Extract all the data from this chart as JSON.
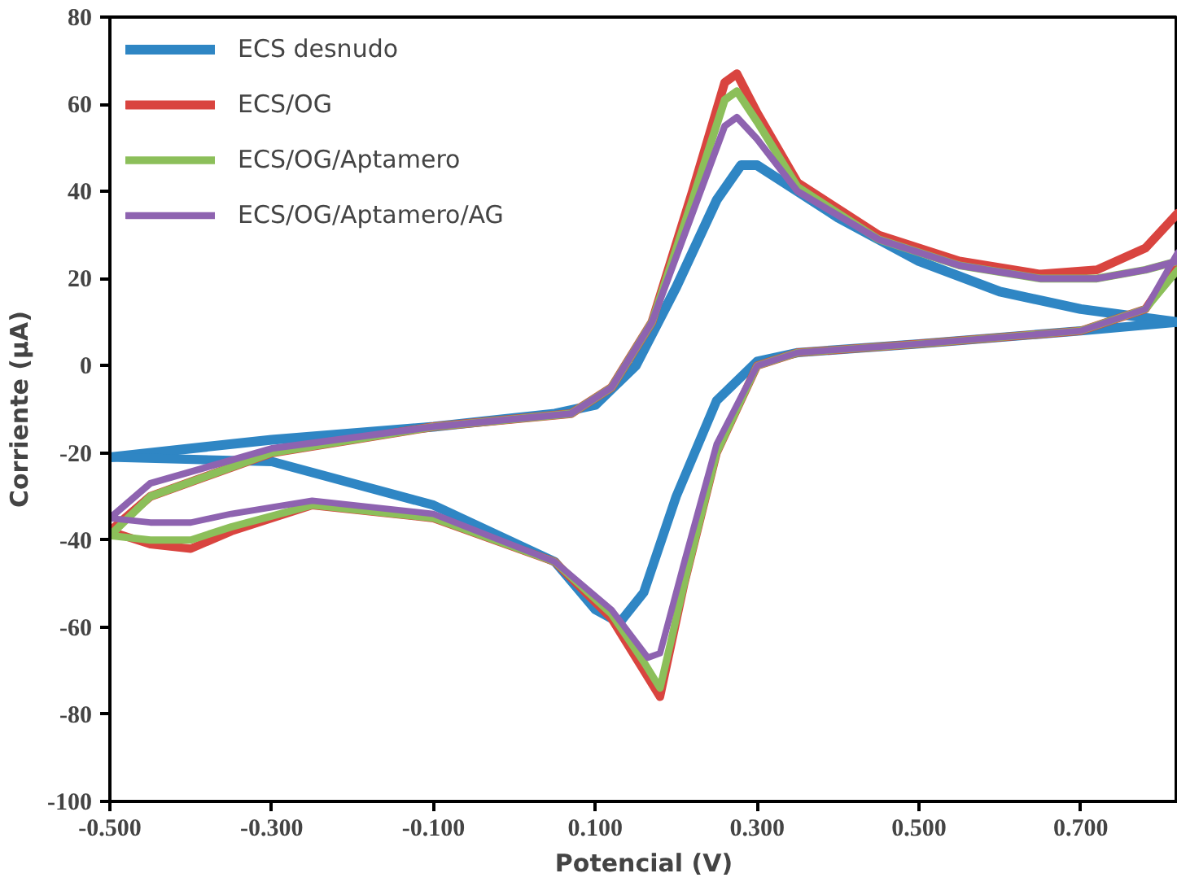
{
  "chart_data": {
    "type": "line",
    "xlabel": "Potencial (V)",
    "ylabel": "Corriente (µA)",
    "xlim": [
      -0.5,
      0.82
    ],
    "ylim": [
      -100,
      80
    ],
    "xticks": [
      {
        "value": -0.5,
        "label": "-0.500"
      },
      {
        "value": -0.3,
        "label": "-0.300"
      },
      {
        "value": -0.1,
        "label": "-0.100"
      },
      {
        "value": 0.1,
        "label": "0.100"
      },
      {
        "value": 0.3,
        "label": "0.300"
      },
      {
        "value": 0.5,
        "label": "0.500"
      },
      {
        "value": 0.7,
        "label": "0.700"
      }
    ],
    "yticks": [
      -100,
      -80,
      -60,
      -40,
      -20,
      0,
      20,
      40,
      60,
      80
    ],
    "grid": false,
    "legend": "top left",
    "marker": "none",
    "line_style": "solid",
    "series": [
      {
        "name": "ECS desnudo",
        "color": "#2f86c4",
        "x": [
          -0.5,
          -0.3,
          -0.1,
          0.05,
          0.1,
          0.15,
          0.2,
          0.25,
          0.28,
          0.3,
          0.35,
          0.4,
          0.5,
          0.6,
          0.7,
          0.82
        ],
        "values": [
          -21,
          -17,
          -14,
          -11,
          -9,
          0,
          18,
          38,
          46,
          46,
          40,
          34,
          24,
          17,
          13,
          10
        ]
      },
      {
        "color": "#2f86c4",
        "x": [
          -0.5,
          -0.3,
          -0.1,
          0.05,
          0.1,
          0.13,
          0.16,
          0.2,
          0.25,
          0.3,
          0.35,
          0.5,
          0.7,
          0.82
        ],
        "values": [
          -21,
          -22,
          -32,
          -45,
          -56,
          -59,
          -52,
          -30,
          -8,
          1,
          3,
          5,
          8,
          10
        ]
      },
      {
        "name": "ECS/OG",
        "color": "#d9443f",
        "x": [
          -0.5,
          -0.45,
          -0.3,
          -0.1,
          0.07,
          0.12,
          0.17,
          0.22,
          0.26,
          0.275,
          0.3,
          0.35,
          0.45,
          0.55,
          0.65,
          0.72,
          0.78,
          0.82
        ],
        "values": [
          -38,
          -30,
          -20,
          -14,
          -11,
          -5,
          10,
          40,
          65,
          67,
          58,
          42,
          30,
          24,
          21,
          22,
          27,
          35
        ]
      },
      {
        "color": "#d9443f",
        "x": [
          -0.5,
          -0.45,
          -0.4,
          -0.35,
          -0.25,
          -0.1,
          0.05,
          0.12,
          0.16,
          0.18,
          0.21,
          0.25,
          0.3,
          0.35,
          0.5,
          0.7,
          0.78,
          0.82
        ],
        "values": [
          -38,
          -41,
          -42,
          -38,
          -32,
          -35,
          -45,
          -58,
          -70,
          -76,
          -50,
          -20,
          0,
          3,
          5,
          8,
          13,
          24
        ]
      },
      {
        "name": "ECS/OG/Aptamero",
        "color": "#8cbf5a",
        "x": [
          -0.5,
          -0.45,
          -0.3,
          -0.1,
          0.07,
          0.12,
          0.17,
          0.22,
          0.26,
          0.275,
          0.3,
          0.35,
          0.45,
          0.55,
          0.65,
          0.72,
          0.78,
          0.82
        ],
        "values": [
          -39,
          -30,
          -20,
          -14,
          -11,
          -5,
          10,
          38,
          61,
          63,
          56,
          41,
          29,
          23,
          20,
          20,
          22,
          24
        ]
      },
      {
        "color": "#8cbf5a",
        "x": [
          -0.5,
          -0.45,
          -0.4,
          -0.35,
          -0.25,
          -0.1,
          0.05,
          0.12,
          0.16,
          0.18,
          0.21,
          0.25,
          0.3,
          0.35,
          0.5,
          0.7,
          0.78,
          0.82
        ],
        "values": [
          -39,
          -40,
          -40,
          -37,
          -32,
          -35,
          -45,
          -57,
          -68,
          -74,
          -50,
          -20,
          0,
          3,
          5,
          8,
          13,
          22
        ]
      },
      {
        "name": "ECS/OG/Aptamero/AG",
        "color": "#8e63b0",
        "x": [
          -0.5,
          -0.45,
          -0.3,
          -0.1,
          0.07,
          0.12,
          0.17,
          0.22,
          0.26,
          0.275,
          0.3,
          0.35,
          0.45,
          0.55,
          0.65,
          0.72,
          0.78,
          0.82
        ],
        "values": [
          -35,
          -27,
          -19,
          -14,
          -11,
          -5,
          10,
          35,
          55,
          57,
          52,
          40,
          29,
          23,
          20,
          20,
          22,
          24
        ]
      },
      {
        "color": "#8e63b0",
        "x": [
          -0.5,
          -0.45,
          -0.4,
          -0.35,
          -0.25,
          -0.1,
          0.05,
          0.12,
          0.165,
          0.18,
          0.21,
          0.25,
          0.3,
          0.35,
          0.5,
          0.7,
          0.78,
          0.82
        ],
        "values": [
          -35,
          -36,
          -36,
          -34,
          -31,
          -34,
          -45,
          -56,
          -67,
          -66,
          -45,
          -18,
          0,
          3,
          5,
          8,
          13,
          26
        ]
      }
    ]
  }
}
